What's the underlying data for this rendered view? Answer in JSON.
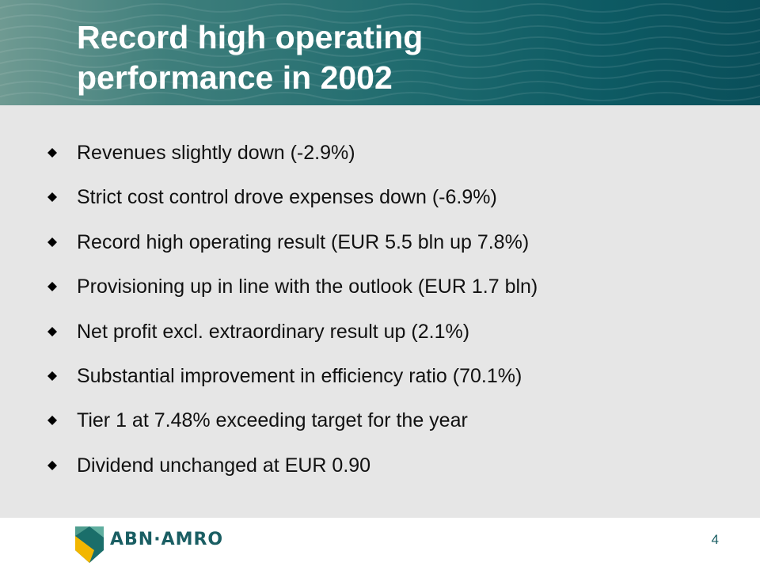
{
  "slide": {
    "title_lines": [
      "Record high operating",
      "performance in 2002"
    ],
    "bullets": [
      "Revenues slightly down (-2.9%)",
      "Strict cost control drove expenses down (-6.9%)",
      "Record high operating result (EUR 5.5 bln up 7.8%)",
      "Provisioning up in line with the outlook (EUR 1.7 bln)",
      "Net profit excl. extraordinary result up (2.1%)",
      "Substantial improvement in efficiency ratio (70.1%)",
      "Tier 1 at 7.48% exceeding target for the year",
      "Dividend unchanged at EUR 0.90"
    ],
    "bullet_icon": "diamond-bullet-icon",
    "page_number": "4"
  },
  "footer": {
    "logo_text": "ABN·AMRO",
    "logo_icon": "abn-amro-shield-icon"
  },
  "colors": {
    "header_teal": "#0d5a63",
    "content_bg": "#e6e6e6",
    "logo_green": "#1a5e63",
    "logo_yellow": "#f2b600"
  }
}
